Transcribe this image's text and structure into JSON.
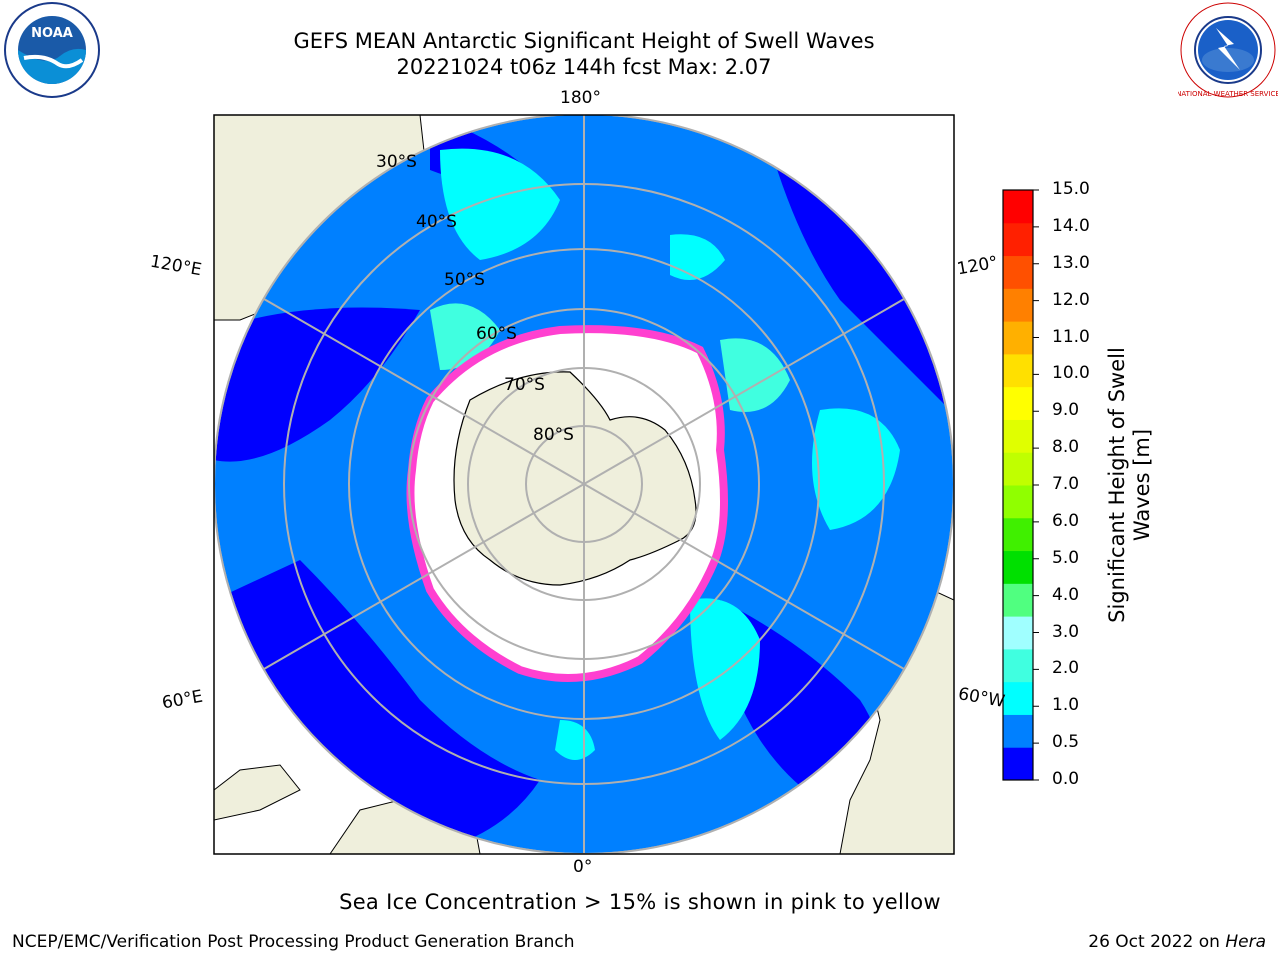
{
  "title_line1": "GEFS MEAN Antarctic Significant Height of Swell Waves",
  "title_line2": "20221024 t06z 144h fcst   Max: 2.07",
  "longitude_labels": {
    "top": "180°",
    "bottom": "0°",
    "left_upper": "120°E",
    "left_lower": "60°E",
    "right_upper": "120°",
    "right_lower": "60°W"
  },
  "latitude_labels": [
    "30°S",
    "40°S",
    "50°S",
    "60°S",
    "70°S",
    "80°S"
  ],
  "colorbar": {
    "label": "Significant Height of Swell Waves [m]",
    "ticks": [
      "15.0",
      "14.0",
      "13.0",
      "12.0",
      "11.0",
      "10.0",
      "9.0",
      "8.0",
      "7.0",
      "6.0",
      "5.0",
      "4.0",
      "3.0",
      "2.0",
      "1.0",
      "0.5",
      "0.0"
    ],
    "colors": [
      "#0000ff",
      "#0080ff",
      "#00ffff",
      "#40ffe0",
      "#a0ffff",
      "#50ff80",
      "#00e000",
      "#40f000",
      "#90ff00",
      "#c0ff00",
      "#e0ff00",
      "#ffff00",
      "#ffe000",
      "#ffb000",
      "#ff8000",
      "#ff5000",
      "#ff2000",
      "#ff0000"
    ]
  },
  "map_colors": {
    "land": "#efefdc",
    "ocean_low": "#0000ff",
    "ocean_mid": "#0080ff",
    "ocean_high": "#00ffff",
    "ice": "#ffffff",
    "ice_edge": "#ff40d0",
    "grid": "#b0b0b0"
  },
  "caption": "Sea Ice Concentration > 15% is shown in pink to yellow",
  "footer_left": "NCEP/EMC/Verification Post Processing Product Generation Branch",
  "footer_right_date": "26 Oct 2022 on",
  "footer_right_host": "Hera",
  "logos": {
    "noaa_text": "NOAA",
    "nws_text": "NATIONAL WEATHER SERVICE"
  }
}
